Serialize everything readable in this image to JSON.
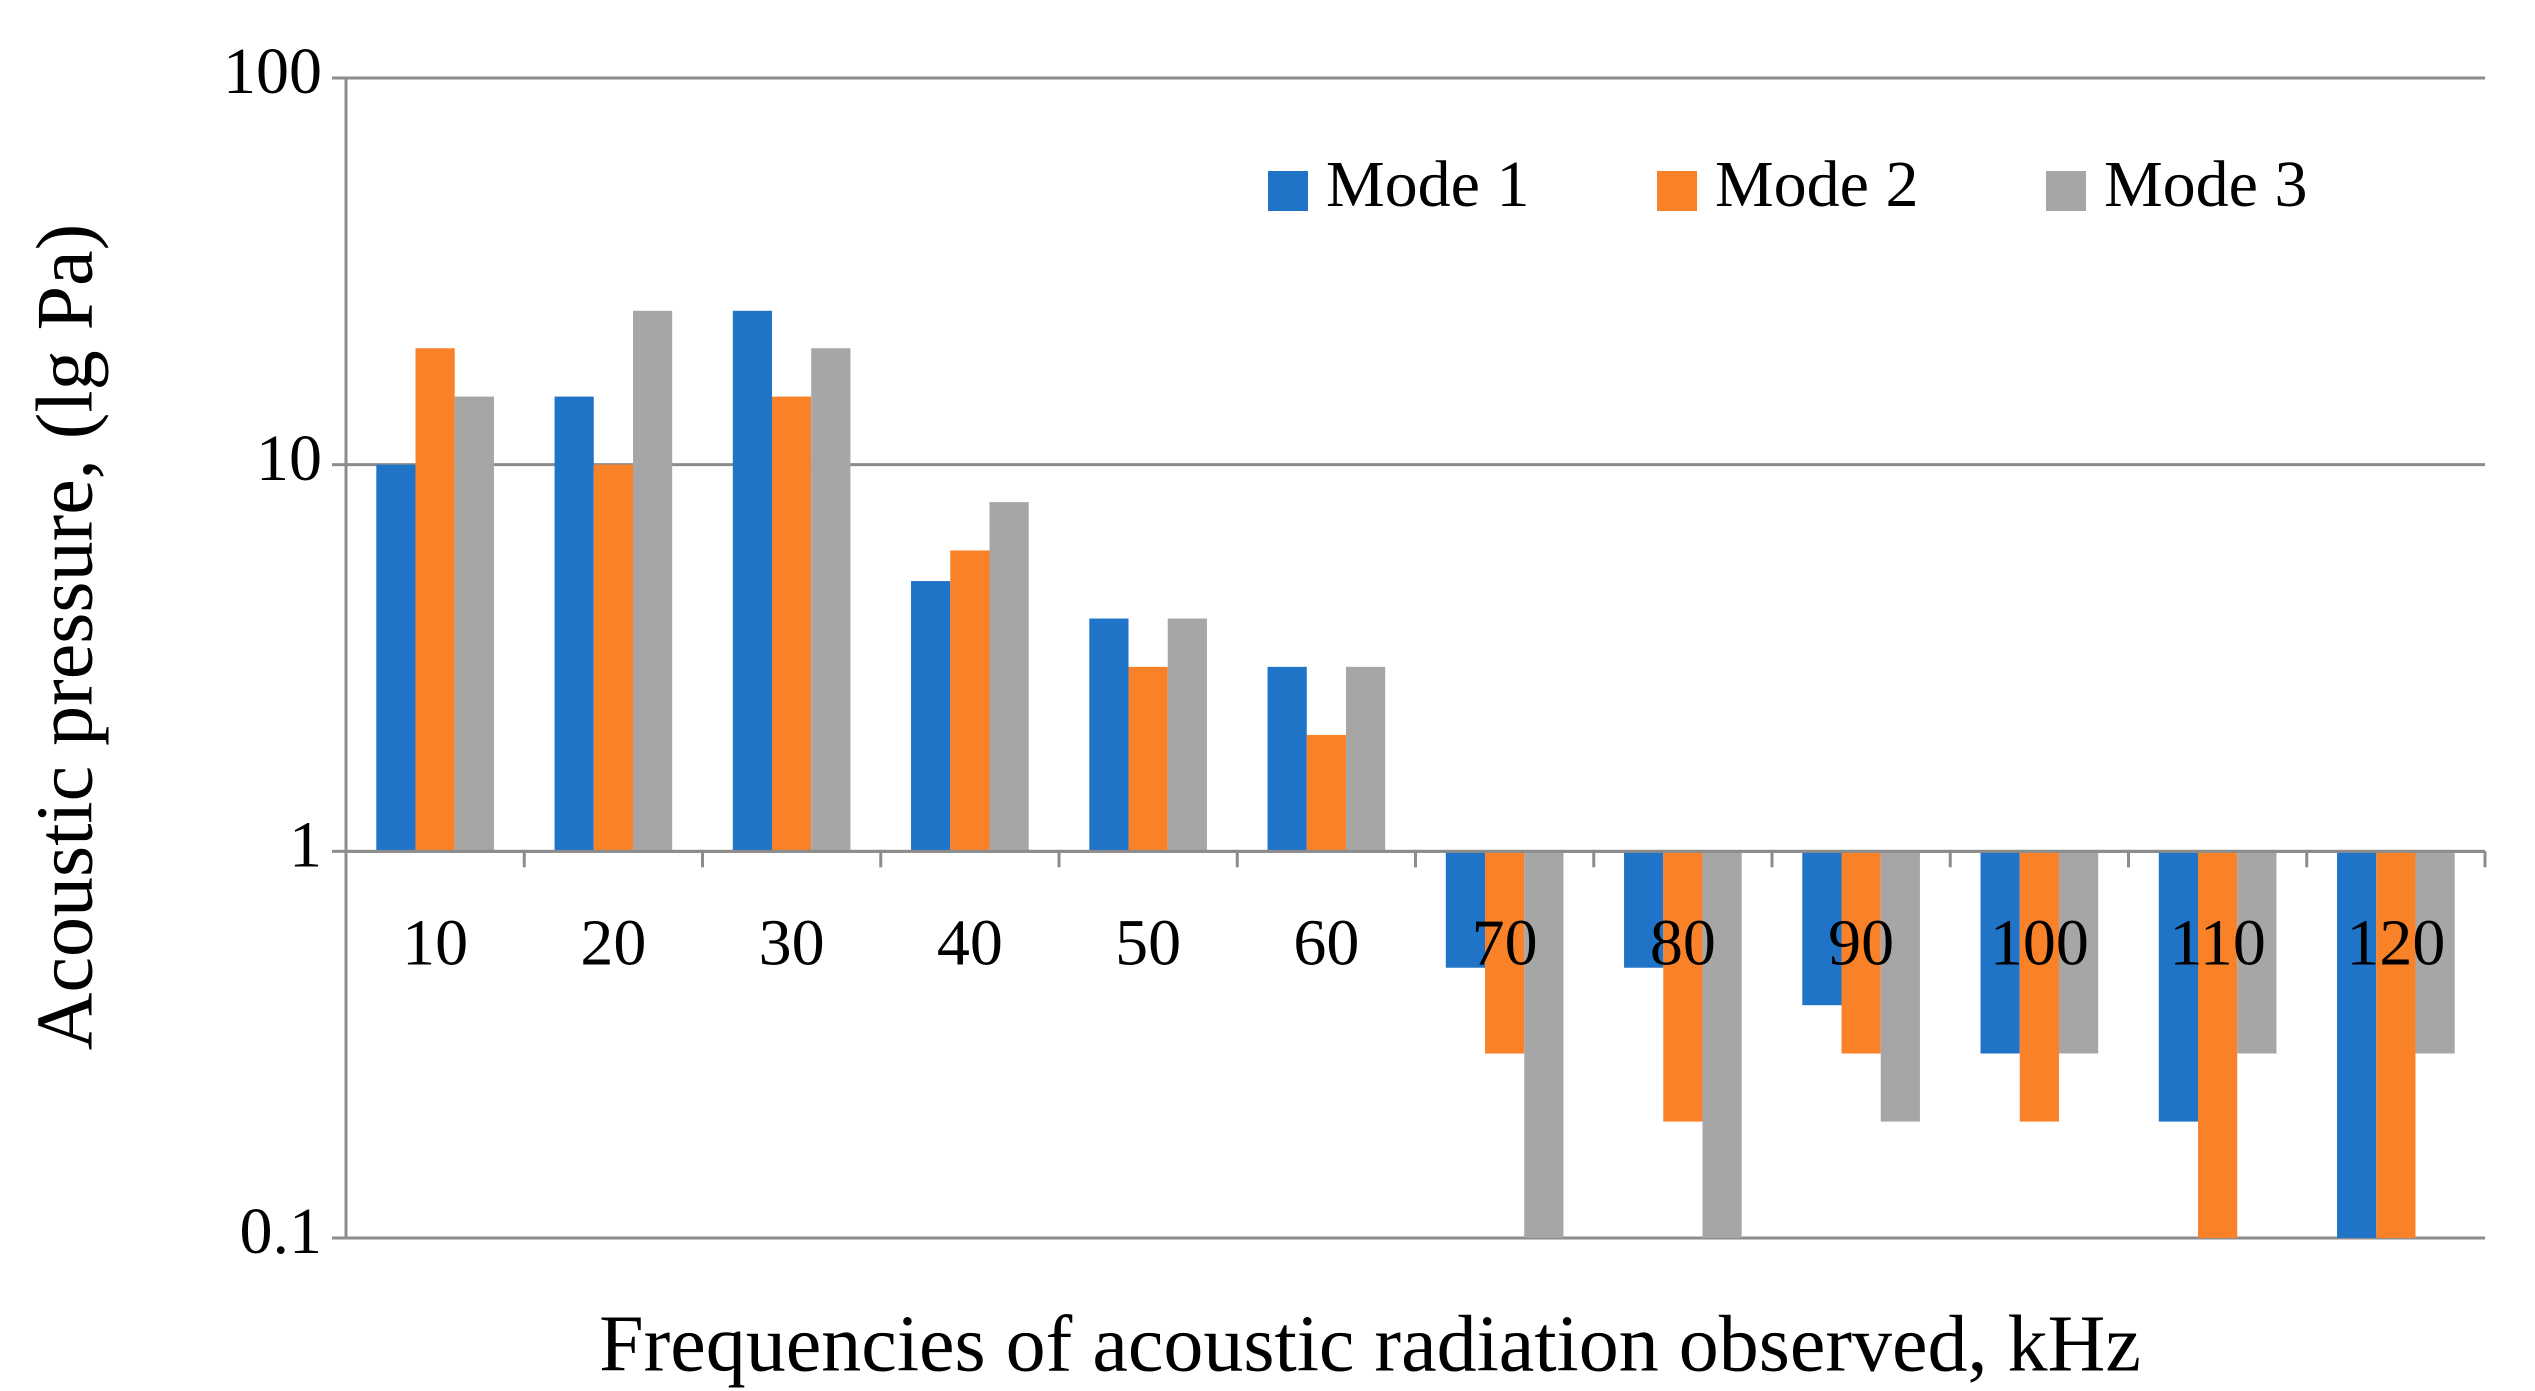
{
  "chart_data": {
    "type": "bar",
    "x_label": "Frequencies of acoustic radiation observed, kHz",
    "y_label": "Acoustic pressure,  (lg Pa)",
    "categories": [
      "10",
      "20",
      "30",
      "40",
      "50",
      "60",
      "70",
      "80",
      "90",
      "100",
      "110",
      "120"
    ],
    "series": [
      {
        "name": "Mode 1",
        "color": "#1f74c8",
        "values": [
          10,
          15,
          25,
          5,
          4,
          3,
          0.5,
          0.5,
          0.4,
          0.3,
          0.2,
          0.1
        ]
      },
      {
        "name": "Mode 2",
        "color": "#f98127",
        "values": [
          20,
          10,
          15,
          6,
          3,
          2,
          0.3,
          0.2,
          0.3,
          0.2,
          0.1,
          0.1
        ]
      },
      {
        "name": "Mode 3",
        "color": "#a6a6a6",
        "values": [
          15,
          25,
          20,
          8,
          4,
          3,
          0.1,
          0.1,
          0.2,
          0.3,
          0.3,
          0.3
        ]
      }
    ],
    "ylim": [
      0.1,
      100
    ],
    "yticks": [
      0.1,
      1,
      10,
      100
    ],
    "log_y": true,
    "baseline": 1,
    "grid": true,
    "legend": "top-right"
  }
}
